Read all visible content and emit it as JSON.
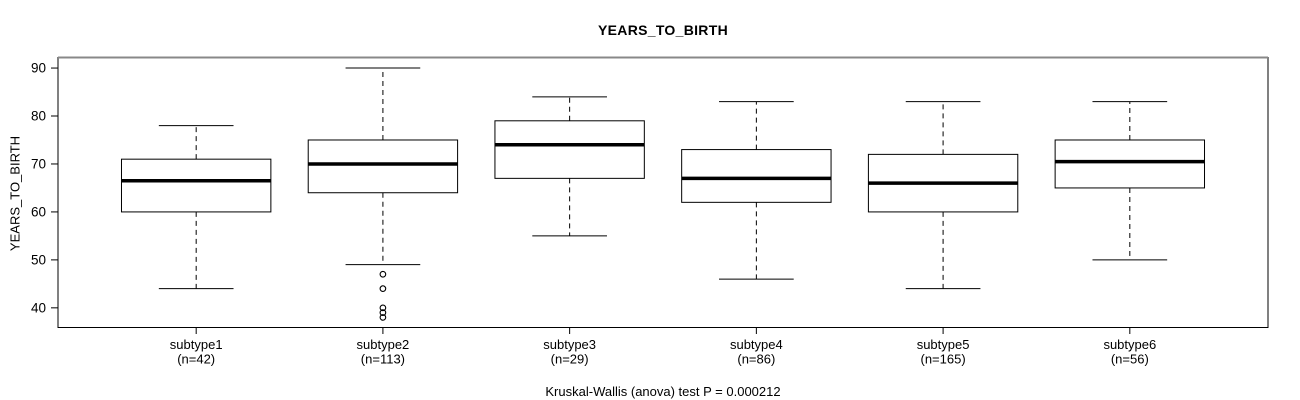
{
  "chart_data": {
    "type": "boxplot",
    "title": "YEARS_TO_BIRTH",
    "ylabel": "YEARS_TO_BIRTH",
    "annotation": "Kruskal-Wallis (anova) test P = 0.000212",
    "grid": false,
    "legend": "none",
    "yticks": [
      40,
      50,
      60,
      70,
      80,
      90
    ],
    "ylim": [
      35.9,
      92.2
    ],
    "xlim": [
      0.26,
      6.74
    ],
    "categories": [
      "subtype1",
      "subtype2",
      "subtype3",
      "subtype4",
      "subtype5",
      "subtype6"
    ],
    "n_labels": [
      "(n=42)",
      "(n=113)",
      "(n=29)",
      "(n=86)",
      "(n=165)",
      "(n=56)"
    ],
    "series": [
      {
        "name": "subtype1",
        "n": 42,
        "whisker_low": 44,
        "q1": 60,
        "median": 66.5,
        "q3": 71,
        "whisker_high": 78,
        "outliers": []
      },
      {
        "name": "subtype2",
        "n": 113,
        "whisker_low": 49,
        "q1": 64,
        "median": 70,
        "q3": 75,
        "whisker_high": 90,
        "outliers": [
          47,
          44,
          40,
          39,
          38
        ]
      },
      {
        "name": "subtype3",
        "n": 29,
        "whisker_low": 55,
        "q1": 67,
        "median": 74,
        "q3": 79,
        "whisker_high": 84,
        "outliers": []
      },
      {
        "name": "subtype4",
        "n": 86,
        "whisker_low": 46,
        "q1": 62,
        "median": 67,
        "q3": 73,
        "whisker_high": 83,
        "outliers": []
      },
      {
        "name": "subtype5",
        "n": 165,
        "whisker_low": 44,
        "q1": 60,
        "median": 66,
        "q3": 72,
        "whisker_high": 83,
        "outliers": []
      },
      {
        "name": "subtype6",
        "n": 56,
        "whisker_low": 50,
        "q1": 65,
        "median": 70.5,
        "q3": 75,
        "whisker_high": 83,
        "outliers": []
      }
    ],
    "colors": {
      "background": "#ffffff",
      "box_fill": "#ffffff",
      "box_border": "#000000",
      "median": "#000000",
      "frame": "#000000",
      "frame_top": "#888888",
      "text": "#000000"
    }
  }
}
